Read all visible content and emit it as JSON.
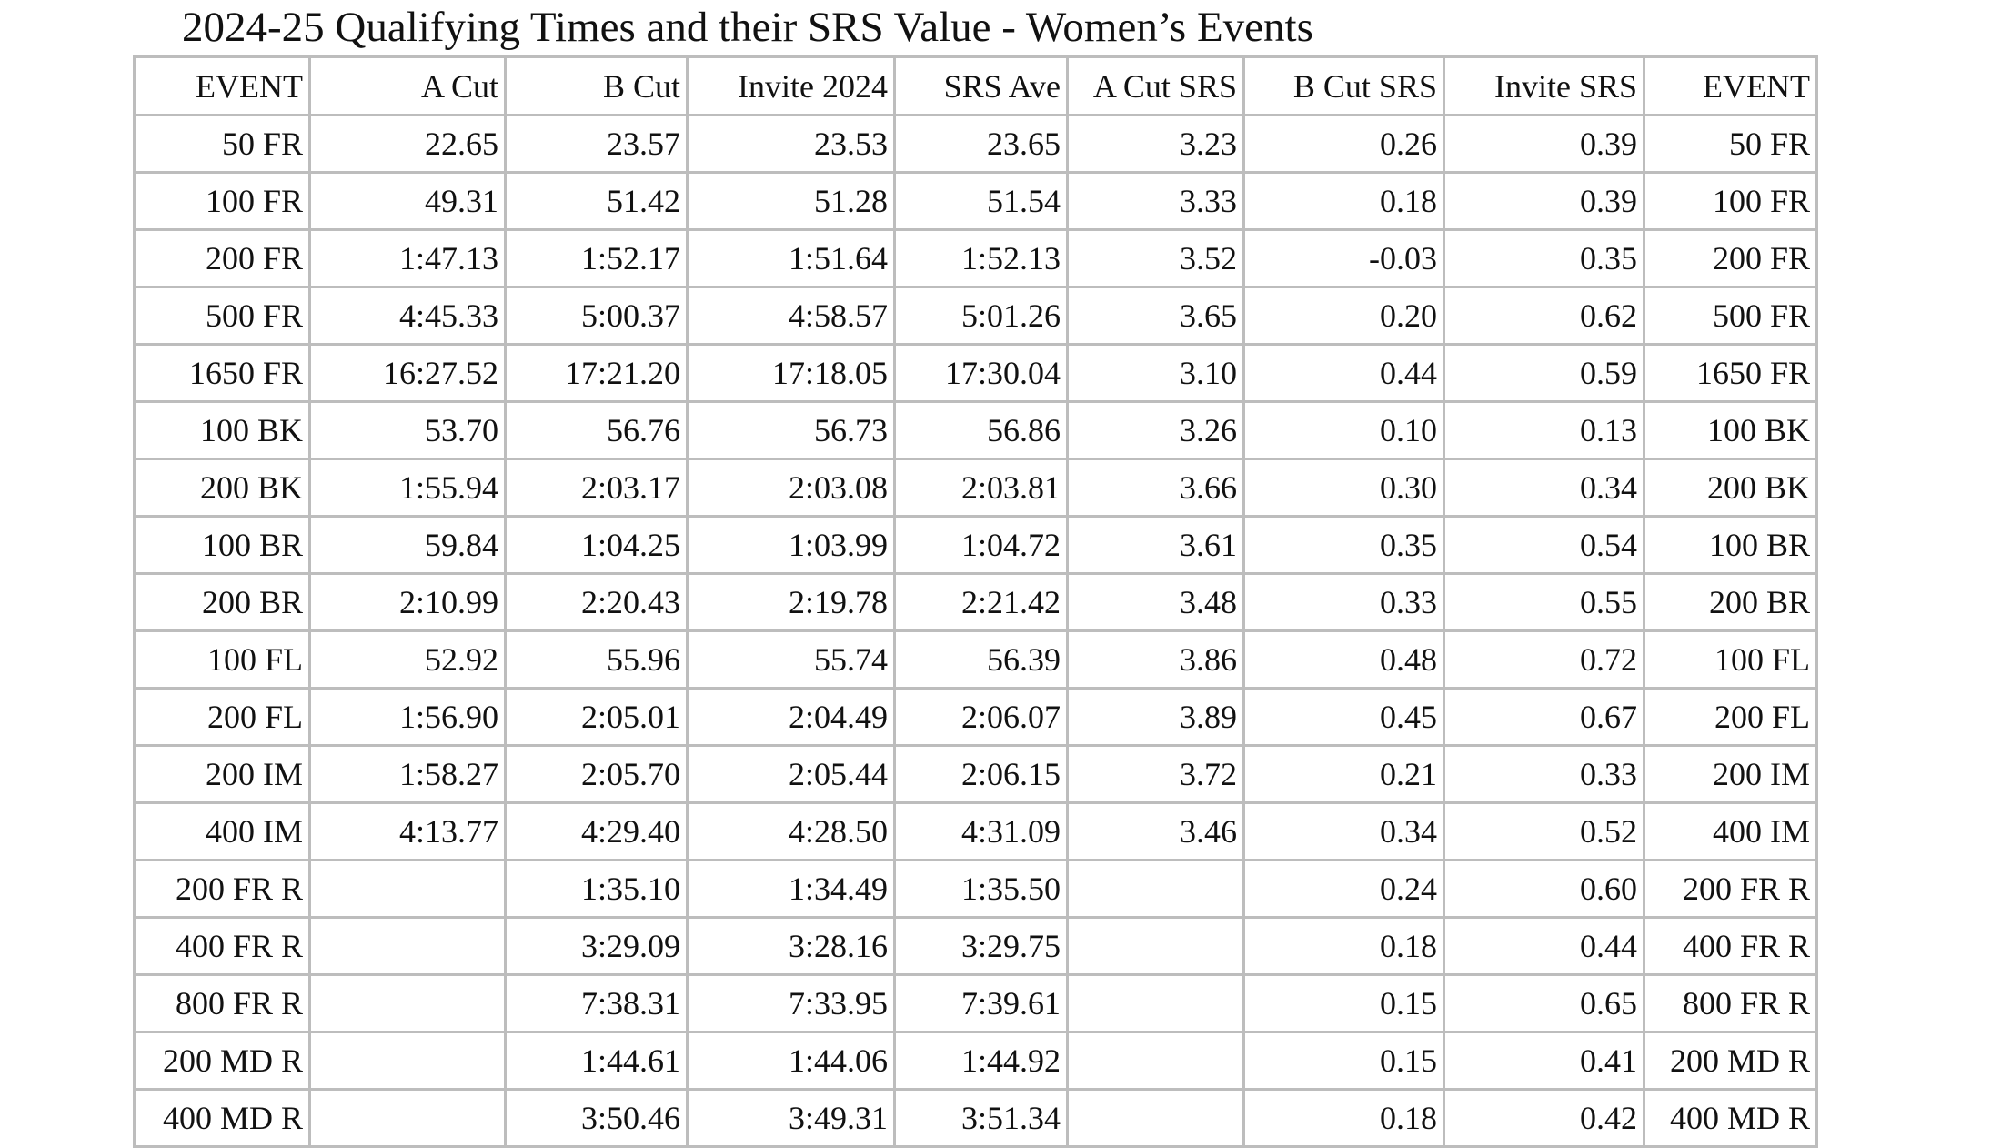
{
  "title": "2024-25 Qualifying Times and their SRS Value - Women’s Events",
  "table": {
    "columns": [
      "EVENT",
      "A Cut",
      "B Cut",
      "Invite 2024",
      "SRS Ave",
      "A Cut SRS",
      "B Cut SRS",
      "Invite SRS",
      "EVENT"
    ],
    "rows": [
      [
        "50 FR",
        "22.65",
        "23.57",
        "23.53",
        "23.65",
        "3.23",
        "0.26",
        "0.39",
        "50 FR"
      ],
      [
        "100 FR",
        "49.31",
        "51.42",
        "51.28",
        "51.54",
        "3.33",
        "0.18",
        "0.39",
        "100 FR"
      ],
      [
        "200 FR",
        "1:47.13",
        "1:52.17",
        "1:51.64",
        "1:52.13",
        "3.52",
        "-0.03",
        "0.35",
        "200 FR"
      ],
      [
        "500 FR",
        "4:45.33",
        "5:00.37",
        "4:58.57",
        "5:01.26",
        "3.65",
        "0.20",
        "0.62",
        "500 FR"
      ],
      [
        "1650 FR",
        "16:27.52",
        "17:21.20",
        "17:18.05",
        "17:30.04",
        "3.10",
        "0.44",
        "0.59",
        "1650 FR"
      ],
      [
        "100 BK",
        "53.70",
        "56.76",
        "56.73",
        "56.86",
        "3.26",
        "0.10",
        "0.13",
        "100 BK"
      ],
      [
        "200 BK",
        "1:55.94",
        "2:03.17",
        "2:03.08",
        "2:03.81",
        "3.66",
        "0.30",
        "0.34",
        "200 BK"
      ],
      [
        "100 BR",
        "59.84",
        "1:04.25",
        "1:03.99",
        "1:04.72",
        "3.61",
        "0.35",
        "0.54",
        "100 BR"
      ],
      [
        "200 BR",
        "2:10.99",
        "2:20.43",
        "2:19.78",
        "2:21.42",
        "3.48",
        "0.33",
        "0.55",
        "200 BR"
      ],
      [
        "100 FL",
        "52.92",
        "55.96",
        "55.74",
        "56.39",
        "3.86",
        "0.48",
        "0.72",
        "100 FL"
      ],
      [
        "200 FL",
        "1:56.90",
        "2:05.01",
        "2:04.49",
        "2:06.07",
        "3.89",
        "0.45",
        "0.67",
        "200 FL"
      ],
      [
        "200 IM",
        "1:58.27",
        "2:05.70",
        "2:05.44",
        "2:06.15",
        "3.72",
        "0.21",
        "0.33",
        "200 IM"
      ],
      [
        "400 IM",
        "4:13.77",
        "4:29.40",
        "4:28.50",
        "4:31.09",
        "3.46",
        "0.34",
        "0.52",
        "400 IM"
      ],
      [
        "200 FR R",
        "",
        "1:35.10",
        "1:34.49",
        "1:35.50",
        "",
        "0.24",
        "0.60",
        "200 FR R"
      ],
      [
        "400 FR R",
        "",
        "3:29.09",
        "3:28.16",
        "3:29.75",
        "",
        "0.18",
        "0.44",
        "400 FR R"
      ],
      [
        "800 FR R",
        "",
        "7:38.31",
        "7:33.95",
        "7:39.61",
        "",
        "0.15",
        "0.65",
        "800 FR R"
      ],
      [
        "200 MD R",
        "",
        "1:44.61",
        "1:44.06",
        "1:44.92",
        "",
        "0.15",
        "0.41",
        "200 MD R"
      ],
      [
        "400 MD R",
        "",
        "3:50.46",
        "3:49.31",
        "3:51.34",
        "",
        "0.18",
        "0.42",
        "400 MD R"
      ]
    ]
  }
}
